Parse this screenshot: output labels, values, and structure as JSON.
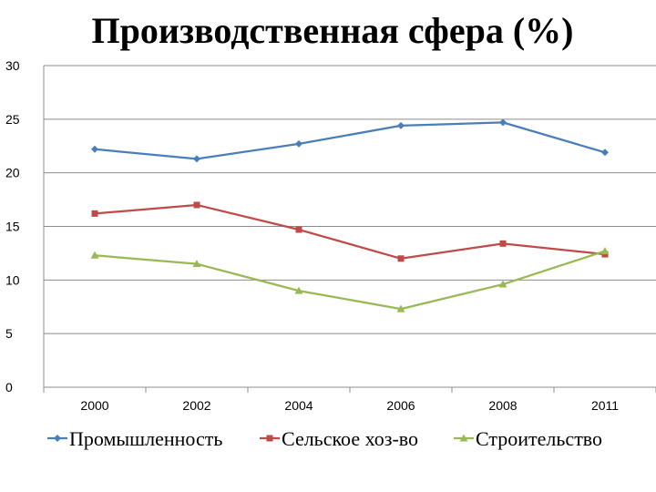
{
  "chart_data": {
    "type": "line",
    "title": "Производственная сфера (%)",
    "xlabel": "",
    "ylabel": "",
    "categories": [
      "2000",
      "2002",
      "2004",
      "2006",
      "2008",
      "2011"
    ],
    "ylim": [
      0,
      30
    ],
    "yticks": [
      0,
      5,
      10,
      15,
      20,
      25,
      30
    ],
    "grid": true,
    "legend_position": "bottom",
    "series": [
      {
        "name": "Промышленность",
        "color": "#4a7ebb",
        "marker": "diamond",
        "values": [
          22.2,
          21.3,
          22.7,
          24.4,
          24.7,
          21.9
        ]
      },
      {
        "name": "Сельское хоз-во",
        "color": "#be4b48",
        "marker": "square",
        "values": [
          16.2,
          17.0,
          14.7,
          12.0,
          13.4,
          12.4
        ]
      },
      {
        "name": "Строительство",
        "color": "#98b954",
        "marker": "triangle",
        "values": [
          12.3,
          11.5,
          9.0,
          7.3,
          9.6,
          12.7
        ]
      }
    ]
  }
}
